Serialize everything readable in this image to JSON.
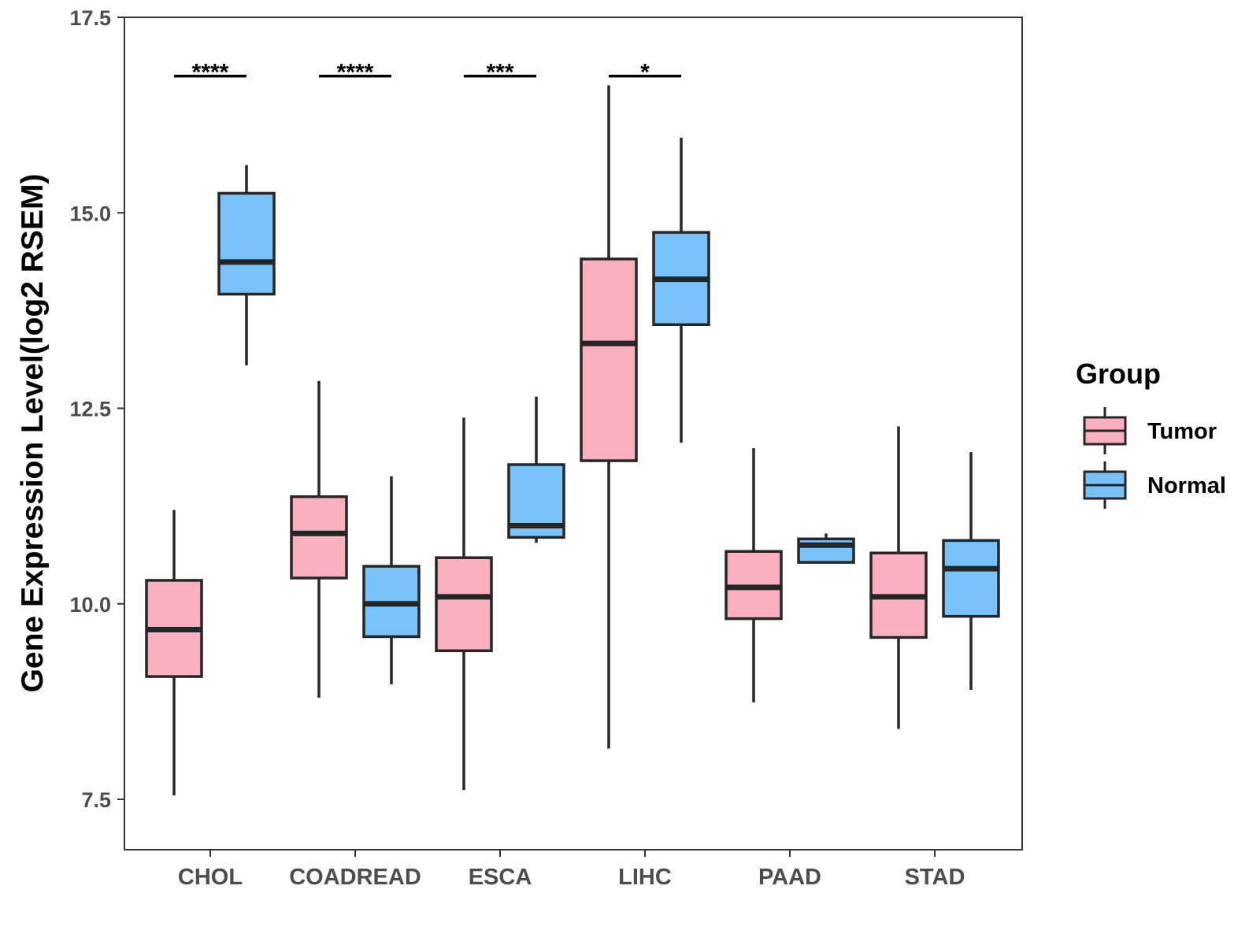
{
  "chart_data": {
    "type": "boxplot",
    "title": "",
    "xlabel": "",
    "ylabel": "Gene Expression Level(log2 RSEM)",
    "ylim": [
      7.0,
      17.5
    ],
    "yticks": [
      7.5,
      10.0,
      12.5,
      15.0,
      17.5
    ],
    "ytick_labels": [
      "7.5",
      "10.0",
      "12.5",
      "15.0",
      "17.5"
    ],
    "categories": [
      "CHOL",
      "COADREAD",
      "ESCA",
      "LIHC",
      "PAAD",
      "STAD"
    ],
    "legend": {
      "title": "Group",
      "position": "right",
      "entries": [
        "Tumor",
        "Normal"
      ]
    },
    "colors": {
      "Tumor": "#FBB0C0",
      "Normal": "#79C2F9",
      "outline": "#262626",
      "panel_border": "#333333"
    },
    "series": [
      {
        "name": "Tumor",
        "boxes": [
          {
            "category": "CHOL",
            "min": 7.55,
            "q1": 9.07,
            "median": 9.67,
            "q3": 10.3,
            "max": 11.2
          },
          {
            "category": "COADREAD",
            "min": 8.8,
            "q1": 10.33,
            "median": 10.9,
            "q3": 11.37,
            "max": 12.85
          },
          {
            "category": "ESCA",
            "min": 7.62,
            "q1": 9.4,
            "median": 10.09,
            "q3": 10.59,
            "max": 12.38
          },
          {
            "category": "LIHC",
            "min": 8.15,
            "q1": 11.83,
            "median": 13.33,
            "q3": 14.41,
            "max": 16.63
          },
          {
            "category": "PAAD",
            "min": 8.74,
            "q1": 9.81,
            "median": 10.21,
            "q3": 10.67,
            "max": 11.99
          },
          {
            "category": "STAD",
            "min": 8.4,
            "q1": 9.57,
            "median": 10.09,
            "q3": 10.65,
            "max": 12.27
          }
        ]
      },
      {
        "name": "Normal",
        "boxes": [
          {
            "category": "CHOL",
            "min": 13.05,
            "q1": 13.96,
            "median": 14.37,
            "q3": 15.25,
            "max": 15.61
          },
          {
            "category": "COADREAD",
            "min": 8.97,
            "q1": 9.58,
            "median": 10.0,
            "q3": 10.48,
            "max": 11.63
          },
          {
            "category": "ESCA",
            "min": 10.78,
            "q1": 10.85,
            "median": 11.0,
            "q3": 11.78,
            "max": 12.65
          },
          {
            "category": "LIHC",
            "min": 12.06,
            "q1": 13.57,
            "median": 14.15,
            "q3": 14.75,
            "max": 15.96
          },
          {
            "category": "PAAD",
            "min": 10.53,
            "q1": 10.53,
            "median": 10.75,
            "q3": 10.83,
            "max": 10.9
          },
          {
            "category": "STAD",
            "min": 8.9,
            "q1": 9.84,
            "median": 10.45,
            "q3": 10.81,
            "max": 11.94
          }
        ]
      }
    ],
    "annotations": [
      {
        "category": "CHOL",
        "label": "****",
        "y": 16.98
      },
      {
        "category": "COADREAD",
        "label": "****",
        "y": 16.98
      },
      {
        "category": "ESCA",
        "label": "***",
        "y": 16.98
      },
      {
        "category": "LIHC",
        "label": "*",
        "y": 16.98
      }
    ]
  }
}
